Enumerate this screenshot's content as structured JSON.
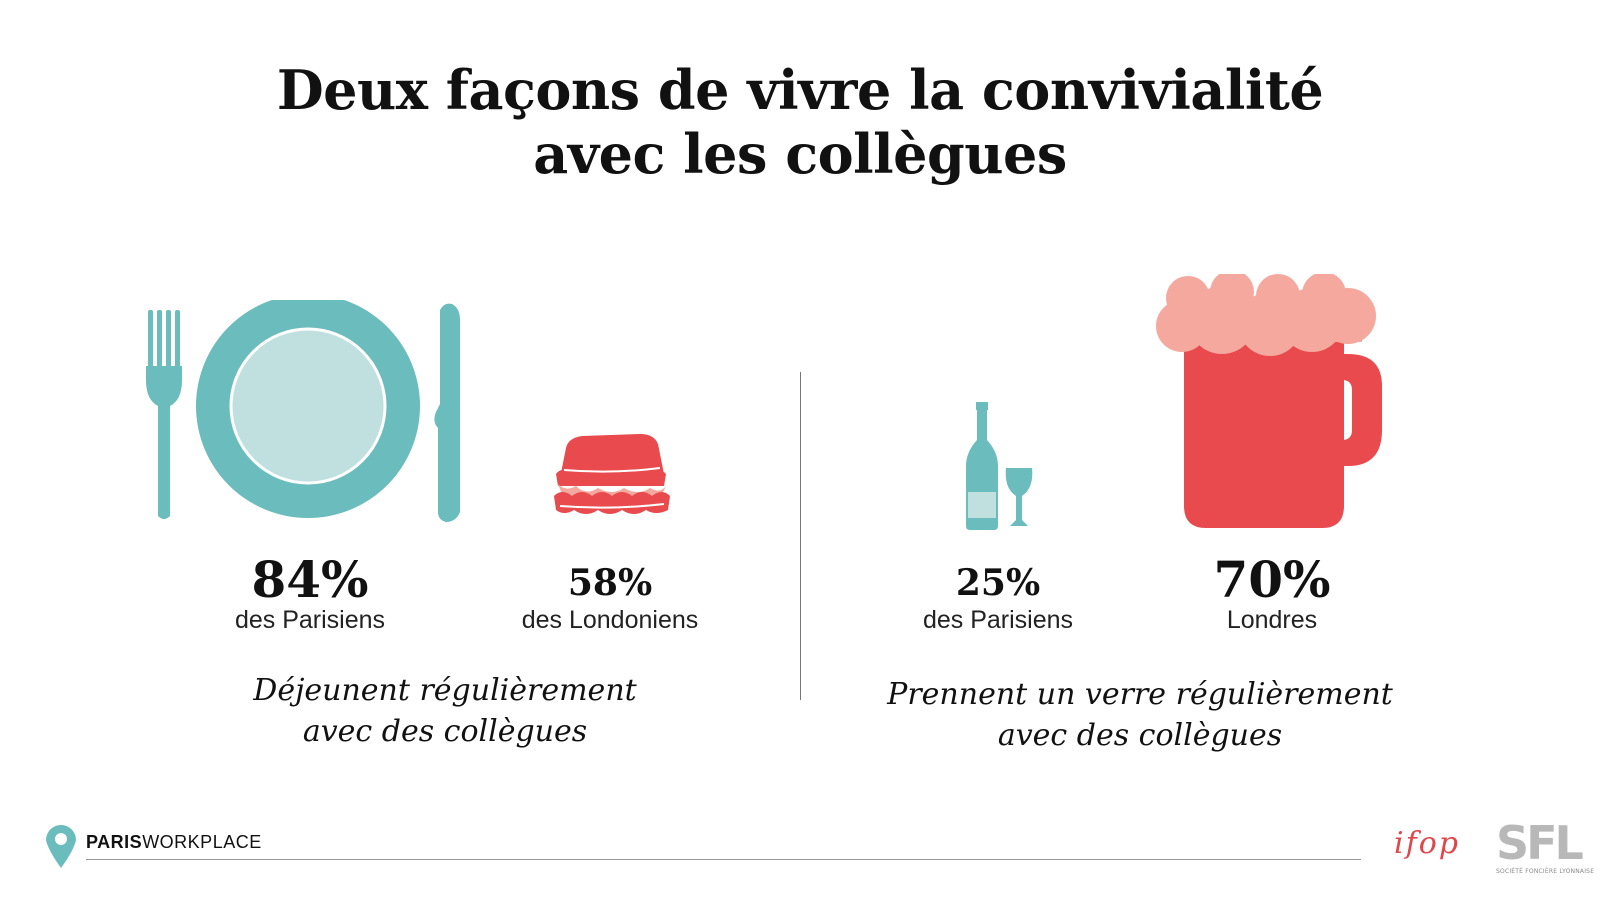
{
  "title": {
    "line1": "Deux façons de vivre la convivialité",
    "line2": "avec les collègues"
  },
  "colors": {
    "teal": "#6bbcbc",
    "teal_light": "#bfe0df",
    "red": "#e84a4d",
    "foam": "#f4a89e"
  },
  "lunch": {
    "paris": {
      "value": "84%",
      "label": "des Parisiens",
      "icon": "plate-fork-knife-icon"
    },
    "london": {
      "value": "58%",
      "label": "des Londoniens",
      "icon": "sandwich-icon"
    },
    "caption_line1": "Déjeunent régulièrement",
    "caption_line2": "avec des collègues"
  },
  "drinks": {
    "paris": {
      "value": "25%",
      "label": "des Parisiens",
      "icon": "wine-bottle-glass-icon"
    },
    "london": {
      "value": "70%",
      "label": "Londres",
      "icon": "beer-mug-icon"
    },
    "caption_line1": "Prennent un verre régulièrement",
    "caption_line2": "avec des collègues"
  },
  "footer": {
    "brand_bold": "PARIS",
    "brand_rest": "WORKPLACE",
    "partner1": "ifop",
    "partner2": "SFL",
    "partner2_sub": "SOCIÉTÉ FONCIÈRE LYONNAISE"
  }
}
